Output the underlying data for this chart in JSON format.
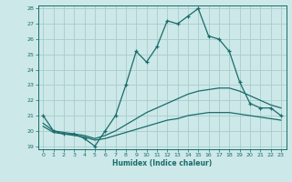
{
  "xlabel": "Humidex (Indice chaleur)",
  "ylabel": "",
  "background_color": "#cce8e8",
  "grid_color": "#aacccc",
  "line_color": "#1a6b6b",
  "xlim": [
    -0.5,
    23.5
  ],
  "ylim": [
    18.8,
    28.2
  ],
  "xticks": [
    0,
    1,
    2,
    3,
    4,
    5,
    6,
    7,
    8,
    9,
    10,
    11,
    12,
    13,
    14,
    15,
    16,
    17,
    18,
    19,
    20,
    21,
    22,
    23
  ],
  "yticks": [
    19,
    20,
    21,
    22,
    23,
    24,
    25,
    26,
    27,
    28
  ],
  "line1_x": [
    0,
    1,
    2,
    3,
    4,
    5,
    6,
    7,
    8,
    9,
    10,
    11,
    12,
    13,
    14,
    15,
    16,
    17,
    18,
    19,
    20,
    21,
    22,
    23
  ],
  "line1_y": [
    21.0,
    20.0,
    19.8,
    19.8,
    19.5,
    19.0,
    20.0,
    21.0,
    23.0,
    25.2,
    24.5,
    25.5,
    27.2,
    27.0,
    27.5,
    28.0,
    26.2,
    26.0,
    25.2,
    23.2,
    21.8,
    21.5,
    21.5,
    21.0
  ],
  "line2_x": [
    0,
    1,
    2,
    3,
    4,
    5,
    6,
    7,
    8,
    9,
    10,
    11,
    12,
    13,
    14,
    15,
    16,
    17,
    18,
    19,
    20,
    21,
    22,
    23
  ],
  "line2_y": [
    20.5,
    20.0,
    19.9,
    19.8,
    19.7,
    19.5,
    19.7,
    20.0,
    20.4,
    20.8,
    21.2,
    21.5,
    21.8,
    22.1,
    22.4,
    22.6,
    22.7,
    22.8,
    22.8,
    22.6,
    22.3,
    22.0,
    21.7,
    21.5
  ],
  "line3_x": [
    0,
    1,
    2,
    3,
    4,
    5,
    6,
    7,
    8,
    9,
    10,
    11,
    12,
    13,
    14,
    15,
    16,
    17,
    18,
    19,
    20,
    21,
    22,
    23
  ],
  "line3_y": [
    20.3,
    19.9,
    19.8,
    19.7,
    19.6,
    19.4,
    19.5,
    19.7,
    19.9,
    20.1,
    20.3,
    20.5,
    20.7,
    20.8,
    21.0,
    21.1,
    21.2,
    21.2,
    21.2,
    21.1,
    21.0,
    20.9,
    20.8,
    20.7
  ]
}
